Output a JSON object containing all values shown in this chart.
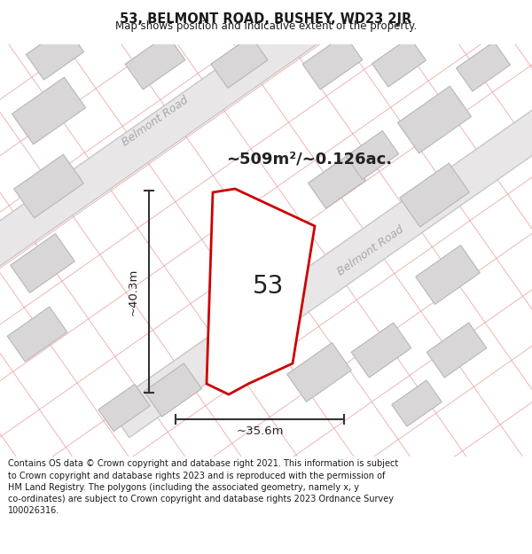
{
  "title": "53, BELMONT ROAD, BUSHEY, WD23 2JR",
  "subtitle": "Map shows position and indicative extent of the property.",
  "area_label": "~509m²/~0.126ac.",
  "number_label": "53",
  "dim_height": "~40.3m",
  "dim_width": "~35.6m",
  "road_label_top": "Belmont Road",
  "road_label_right": "Belmont Road",
  "footer_line1": "Contains OS data © Crown copyright and database right 2021. This information is subject",
  "footer_line2": "to Crown copyright and database rights 2023 and is reproduced with the permission of",
  "footer_line3": "HM Land Registry. The polygons (including the associated geometry, namely x, y",
  "footer_line4": "co-ordinates) are subject to Crown copyright and database rights 2023 Ordnance Survey",
  "footer_line5": "100026316.",
  "map_bg": "#f2f0f0",
  "property_fill": "#ffffff",
  "property_edge": "#cc0000",
  "title_color": "#1a1a1a",
  "subtitle_color": "#1a1a1a",
  "road_band_fill": "#e8e6e6",
  "road_band_edge": "#c8c6c6",
  "building_fill": "#d8d6d6",
  "building_edge": "#b8b6b6",
  "pink_line_color": "#e8a0a0",
  "grey_line_color": "#c8c8c8",
  "road_text_color": "#aaaaaa",
  "dim_line_color": "#333333",
  "label_color": "#1a1a1a",
  "footer_color": "#1a1a1a"
}
